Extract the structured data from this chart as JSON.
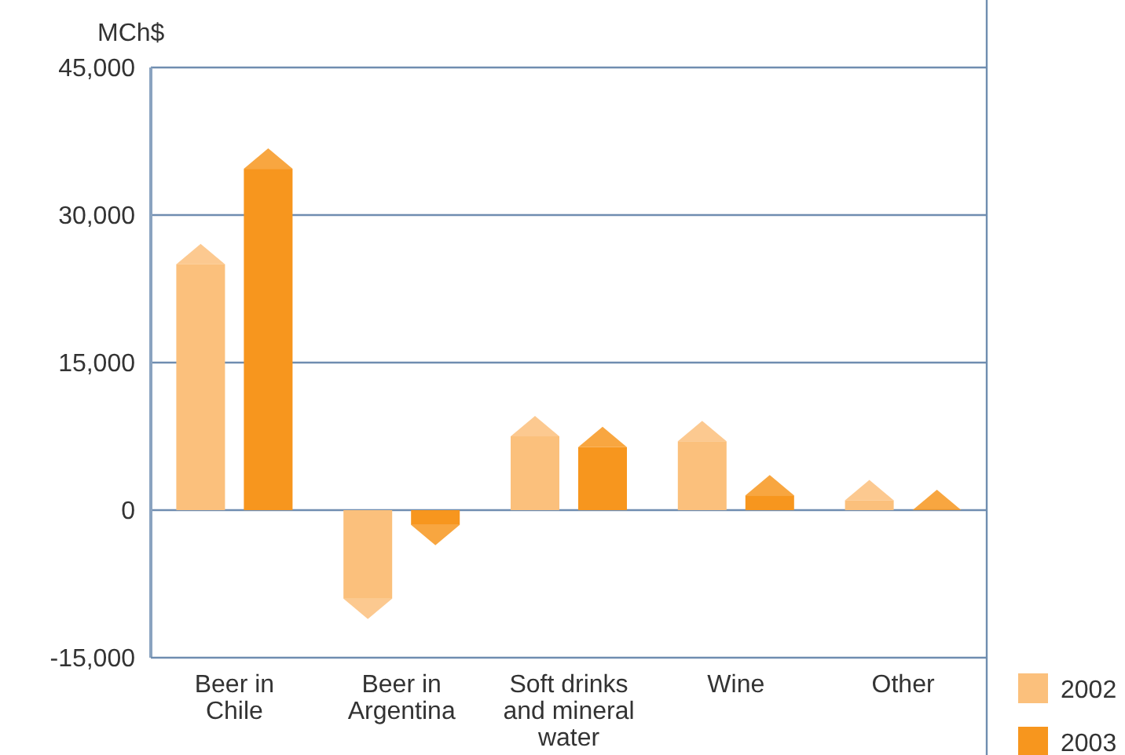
{
  "chart_data": {
    "type": "bar",
    "ylabel": "MCh$",
    "categories": [
      "Beer in Chile",
      "Beer in Argentina",
      "Soft drinks and mineral water",
      "Wine",
      "Other"
    ],
    "series": [
      {
        "name": "2002",
        "color": "#fbc07c",
        "values": [
          25000,
          -9000,
          7500,
          7000,
          1000
        ]
      },
      {
        "name": "2003",
        "color": "#f7961e",
        "values": [
          34700,
          -1500,
          6400,
          1500,
          0
        ]
      }
    ],
    "ylim": [
      -15000,
      45000
    ],
    "yticks": [
      {
        "value": -15000,
        "label": "-15,000"
      },
      {
        "value": 0,
        "label": "0"
      },
      {
        "value": 15000,
        "label": "15,000"
      },
      {
        "value": 30000,
        "label": "30,000"
      },
      {
        "value": 45000,
        "label": "45,000"
      }
    ],
    "grid": "y",
    "legend": "bottom right"
  }
}
